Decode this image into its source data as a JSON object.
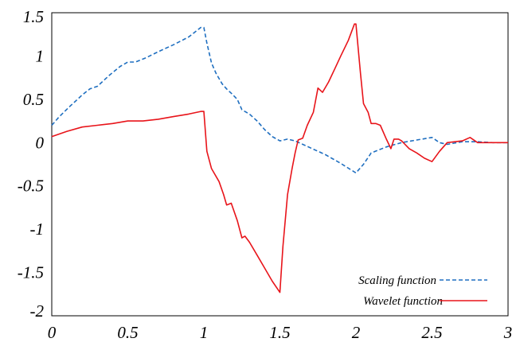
{
  "chart_data": {
    "type": "line",
    "title": "",
    "xlabel": "",
    "ylabel": "",
    "xlim": [
      0,
      3
    ],
    "ylim": [
      -2,
      1.5
    ],
    "grid": false,
    "legend": "bottom-right",
    "x_ticks": [
      "0",
      "0.5",
      "1",
      "1.5",
      "2",
      "2.5",
      "3"
    ],
    "y_ticks": [
      "1.5",
      "1",
      "0.5",
      "0",
      "-0.5",
      "-1",
      "-1.5",
      "-2"
    ],
    "series": [
      {
        "name": "Scaling function",
        "color": "#1f6fc0",
        "dash": "dashed",
        "x": [
          0,
          0.05,
          0.12,
          0.2,
          0.25,
          0.3,
          0.38,
          0.45,
          0.5,
          0.55,
          0.62,
          0.7,
          0.8,
          0.9,
          0.98,
          1.0,
          1.02,
          1.05,
          1.08,
          1.12,
          1.15,
          1.18,
          1.22,
          1.25,
          1.3,
          1.35,
          1.4,
          1.45,
          1.5,
          1.55,
          1.6,
          1.7,
          1.8,
          1.9,
          2.0,
          2.05,
          2.1,
          2.2,
          2.3,
          2.4,
          2.5,
          2.55,
          2.6,
          2.7,
          2.8,
          2.9,
          3.0
        ],
        "y": [
          0.2,
          0.3,
          0.42,
          0.55,
          0.62,
          0.65,
          0.78,
          0.88,
          0.93,
          0.93,
          0.98,
          1.05,
          1.13,
          1.22,
          1.33,
          1.33,
          1.15,
          0.92,
          0.8,
          0.68,
          0.62,
          0.57,
          0.5,
          0.38,
          0.33,
          0.25,
          0.15,
          0.07,
          0.02,
          0.04,
          0.02,
          -0.06,
          -0.14,
          -0.24,
          -0.35,
          -0.25,
          -0.12,
          -0.05,
          0.0,
          0.03,
          0.06,
          0.0,
          -0.02,
          0.01,
          0.01,
          0.0,
          0.0
        ]
      },
      {
        "name": "Wavelet function",
        "color": "#e8141a",
        "dash": "solid",
        "x": [
          0,
          0.1,
          0.2,
          0.3,
          0.4,
          0.5,
          0.6,
          0.7,
          0.8,
          0.9,
          0.98,
          1.0,
          1.02,
          1.05,
          1.1,
          1.13,
          1.15,
          1.18,
          1.22,
          1.25,
          1.27,
          1.3,
          1.35,
          1.4,
          1.45,
          1.5,
          1.52,
          1.55,
          1.58,
          1.6,
          1.62,
          1.65,
          1.68,
          1.72,
          1.75,
          1.78,
          1.82,
          1.86,
          1.9,
          1.95,
          1.99,
          2.0,
          2.03,
          2.05,
          2.08,
          2.1,
          2.13,
          2.16,
          2.2,
          2.23,
          2.25,
          2.28,
          2.3,
          2.35,
          2.4,
          2.45,
          2.5,
          2.55,
          2.6,
          2.65,
          2.7,
          2.75,
          2.8,
          3.0
        ],
        "y": [
          0.07,
          0.13,
          0.18,
          0.2,
          0.22,
          0.25,
          0.25,
          0.27,
          0.3,
          0.33,
          0.36,
          0.36,
          -0.1,
          -0.3,
          -0.45,
          -0.6,
          -0.72,
          -0.7,
          -0.9,
          -1.1,
          -1.08,
          -1.15,
          -1.3,
          -1.45,
          -1.6,
          -1.73,
          -1.2,
          -0.6,
          -0.3,
          -0.12,
          0.03,
          0.05,
          0.2,
          0.35,
          0.63,
          0.58,
          0.7,
          0.85,
          1.0,
          1.18,
          1.37,
          1.37,
          0.8,
          0.45,
          0.35,
          0.22,
          0.22,
          0.2,
          0.04,
          -0.07,
          0.04,
          0.04,
          0.02,
          -0.07,
          -0.12,
          -0.18,
          -0.22,
          -0.1,
          0.0,
          0.01,
          0.02,
          0.06,
          0.0,
          0.0
        ]
      }
    ]
  }
}
